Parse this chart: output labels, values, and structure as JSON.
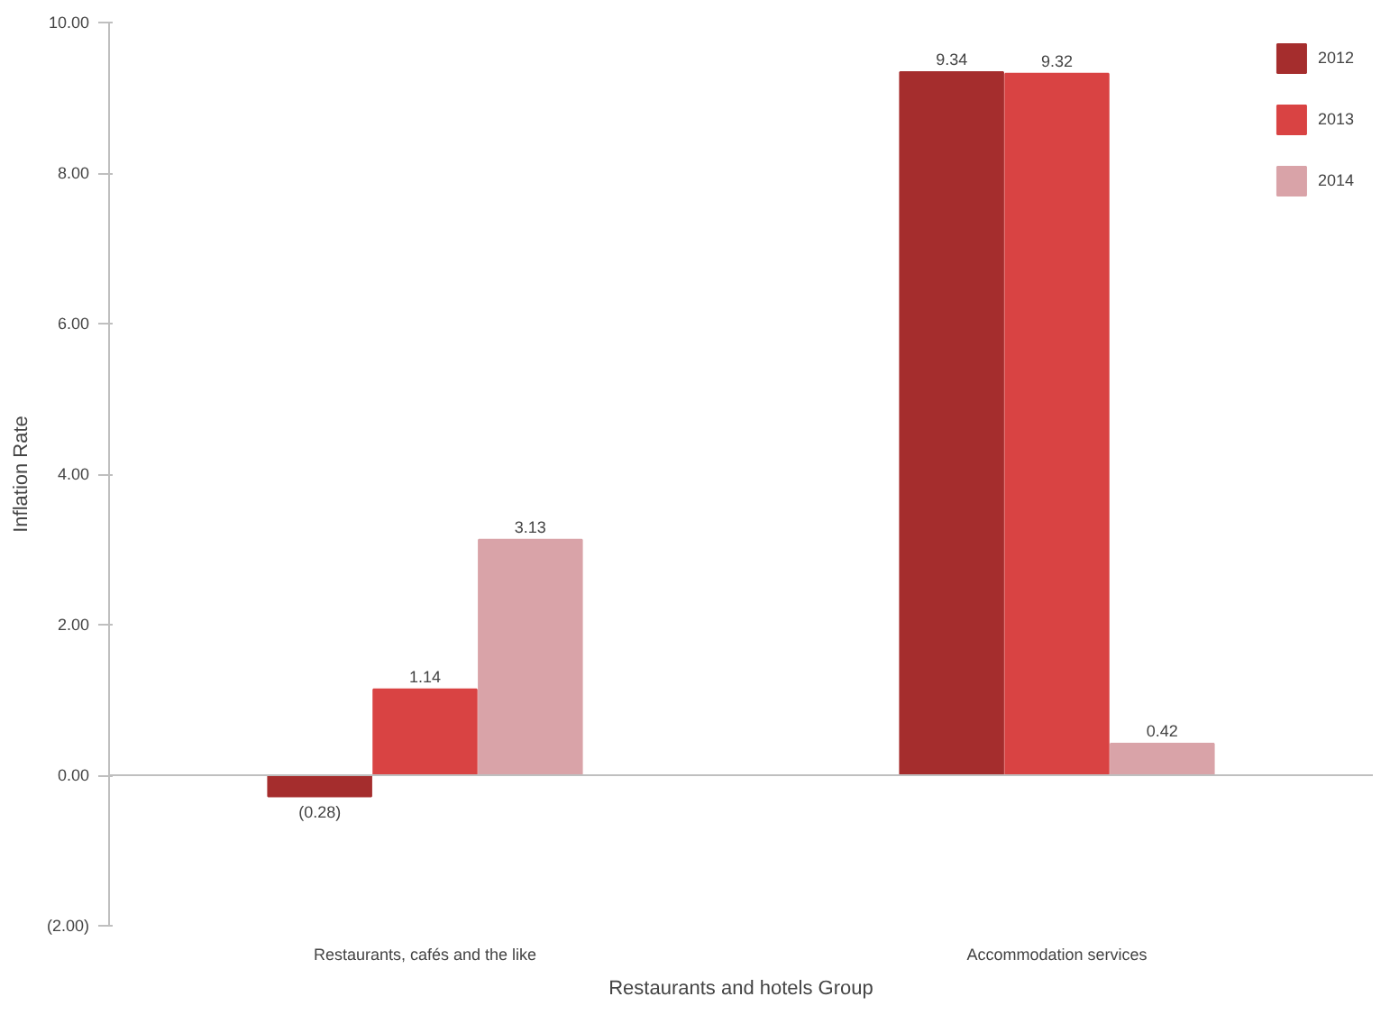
{
  "chart_data": {
    "type": "bar",
    "xlabel": "Restaurants and hotels Group",
    "ylabel": "Inflation Rate",
    "categories": [
      "Restaurants, cafés and the like",
      "Accommodation services"
    ],
    "series": [
      {
        "name": "2012",
        "color": "#a52d2d",
        "values": [
          -0.28,
          9.34
        ],
        "value_labels": [
          "(0.28)",
          "9.34"
        ]
      },
      {
        "name": "2013",
        "color": "#d94343",
        "values": [
          1.14,
          9.32
        ],
        "value_labels": [
          "1.14",
          "9.32"
        ]
      },
      {
        "name": "2014",
        "color": "#d9a3a8",
        "values": [
          3.13,
          0.42
        ],
        "value_labels": [
          "3.13",
          "0.42"
        ]
      }
    ],
    "ylim": [
      -2,
      10
    ],
    "yticks": [
      {
        "value": -2,
        "label": "(2.00)"
      },
      {
        "value": 0,
        "label": "0.00"
      },
      {
        "value": 2,
        "label": "2.00"
      },
      {
        "value": 4,
        "label": "4.00"
      },
      {
        "value": 6,
        "label": "6.00"
      },
      {
        "value": 8,
        "label": "8.00"
      },
      {
        "value": 10,
        "label": "10.00"
      }
    ],
    "ref_lines": [
      {
        "axis": "y",
        "value": 0,
        "color": "#bfbfbf"
      }
    ],
    "legend": "top right",
    "grid": false
  }
}
